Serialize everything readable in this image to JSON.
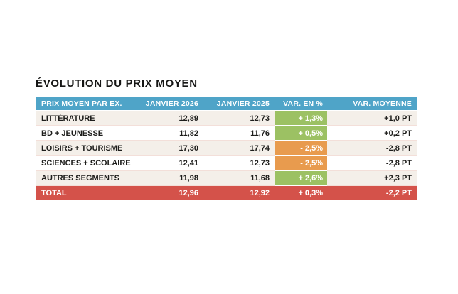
{
  "title": "ÉVOLUTION DU PRIX MOYEN",
  "table": {
    "columns": [
      "PRIX MOYEN PAR EX.",
      "JANVIER 2026",
      "JANVIER 2025",
      "VAR. EN %",
      "VAR. MOYENNE"
    ],
    "rows": [
      {
        "label": "LITTÉRATURE",
        "jan2026": "12,89",
        "jan2025": "12,73",
        "var_pct": "+ 1,3%",
        "trend": "positive",
        "var_moyenne": "+1,0 PT"
      },
      {
        "label": "BD + JEUNESSE",
        "jan2026": "11,82",
        "jan2025": "11,76",
        "var_pct": "+ 0,5%",
        "trend": "positive",
        "var_moyenne": "+0,2 PT"
      },
      {
        "label": "LOISIRS + TOURISME",
        "jan2026": "17,30",
        "jan2025": "17,74",
        "var_pct": "- 2,5%",
        "trend": "negative",
        "var_moyenne": "-2,8 PT"
      },
      {
        "label": "SCIENCES + SCOLAIRE",
        "jan2026": "12,41",
        "jan2025": "12,73",
        "var_pct": "- 2,5%",
        "trend": "negative",
        "var_moyenne": "-2,8 PT"
      },
      {
        "label": "AUTRES SEGMENTS",
        "jan2026": "11,98",
        "jan2025": "11,68",
        "var_pct": "+ 2,6%",
        "trend": "positive",
        "var_moyenne": "+2,3 PT"
      }
    ],
    "total_row": {
      "label": "TOTAL",
      "jan2026": "12,96",
      "jan2025": "12,92",
      "var_pct": "+ 0,3%",
      "trend": "total",
      "var_moyenne": "-2,2 PT"
    }
  },
  "colors": {
    "header_bg": "#4FA4C8",
    "positive_bg": "#9CC163",
    "negative_bg": "#E89B4E",
    "total_bg": "#D4524A",
    "row_alt_bg": "#F4EFE9",
    "separator": "#F3DFD9",
    "header_text": "#FFFFFF",
    "body_text": "#1D1D1B"
  },
  "chart_data": {
    "type": "table",
    "title": "ÉVOLUTION DU PRIX MOYEN",
    "columns": [
      "PRIX MOYEN PAR EX.",
      "JANVIER 2026",
      "JANVIER 2025",
      "VAR. EN %",
      "VAR. MOYENNE"
    ],
    "rows": [
      [
        "LITTÉRATURE",
        12.89,
        12.73,
        1.3,
        1.0
      ],
      [
        "BD + JEUNESSE",
        11.82,
        11.76,
        0.5,
        0.2
      ],
      [
        "LOISIRS + TOURISME",
        17.3,
        17.74,
        -2.5,
        -2.8
      ],
      [
        "SCIENCES + SCOLAIRE",
        12.41,
        12.73,
        -2.5,
        -2.8
      ],
      [
        "AUTRES SEGMENTS",
        11.98,
        11.68,
        2.6,
        2.3
      ],
      [
        "TOTAL",
        12.96,
        12.92,
        0.3,
        -2.2
      ]
    ]
  }
}
